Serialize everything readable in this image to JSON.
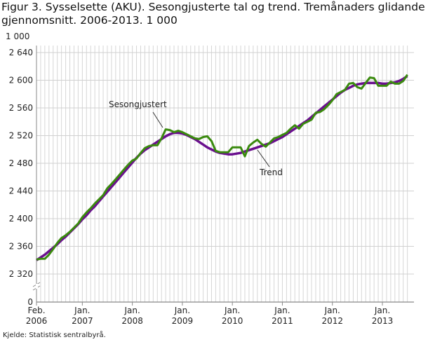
{
  "chart_data": {
    "type": "line",
    "title": "Figur 3. Sysselsette (AKU).  Sesongjusterte tal og trend. Tremånaders glidande gjennomsnitt. 2006-2013. 1 000",
    "ylabel": "1 000",
    "source": "Kjelde: Statistisk sentralbyrå.",
    "x_start": "2006-02",
    "x_end": "2013-07",
    "x_step": "month",
    "x_ticks": [
      {
        "month": 0,
        "label": [
          "Feb.",
          "2006"
        ]
      },
      {
        "month": 11,
        "label": [
          "Jan.",
          "2007"
        ]
      },
      {
        "month": 23,
        "label": [
          "Jan.",
          "2008"
        ]
      },
      {
        "month": 35,
        "label": [
          "Jan.",
          "2009"
        ]
      },
      {
        "month": 47,
        "label": [
          "Jan.",
          "2010"
        ]
      },
      {
        "month": 59,
        "label": [
          "Jan.",
          "2011"
        ]
      },
      {
        "month": 71,
        "label": [
          "Jan.",
          "2012"
        ]
      },
      {
        "month": 83,
        "label": [
          "Jan.",
          "2013"
        ]
      }
    ],
    "y_ticks": [
      {
        "v": 0,
        "label": "0"
      },
      {
        "v": 2320,
        "label": "2 320"
      },
      {
        "v": 2360,
        "label": "2 360"
      },
      {
        "v": 2400,
        "label": "2 400"
      },
      {
        "v": 2440,
        "label": "2 440"
      },
      {
        "v": 2480,
        "label": "2 480"
      },
      {
        "v": 2520,
        "label": "2 520"
      },
      {
        "v": 2560,
        "label": "2 560"
      },
      {
        "v": 2600,
        "label": "2 600"
      },
      {
        "v": 2640,
        "label": "2 640"
      }
    ],
    "ylim": [
      2320,
      2640
    ],
    "y_axis_break": true,
    "grid": true,
    "series": [
      {
        "name": "Sesongjustert",
        "color": "#3a8a0e",
        "values": [
          2341,
          2342,
          2342,
          2348,
          2356,
          2365,
          2372,
          2376,
          2381,
          2387,
          2393,
          2402,
          2409,
          2415,
          2422,
          2428,
          2434,
          2444,
          2450,
          2457,
          2464,
          2471,
          2478,
          2484,
          2487,
          2495,
          2502,
          2505,
          2506,
          2506,
          2516,
          2529,
          2528,
          2525,
          2527,
          2525,
          2522,
          2519,
          2516,
          2515,
          2518,
          2519,
          2512,
          2498,
          2496,
          2496,
          2496,
          2503,
          2503,
          2503,
          2490,
          2505,
          2510,
          2514,
          2508,
          2504,
          2510,
          2516,
          2518,
          2521,
          2524,
          2530,
          2535,
          2530,
          2537,
          2540,
          2543,
          2553,
          2554,
          2558,
          2564,
          2571,
          2580,
          2583,
          2586,
          2595,
          2596,
          2590,
          2588,
          2596,
          2604,
          2603,
          2592,
          2592,
          2592,
          2598,
          2595,
          2595,
          2599,
          2608
        ]
      },
      {
        "name": "Trend",
        "color": "#6a0f8e",
        "values": [
          2340,
          2344,
          2348,
          2353,
          2358,
          2363,
          2369,
          2374,
          2380,
          2386,
          2392,
          2399,
          2405,
          2412,
          2418,
          2425,
          2432,
          2439,
          2446,
          2453,
          2460,
          2467,
          2474,
          2481,
          2488,
          2494,
          2499,
          2503,
          2507,
          2511,
          2515,
          2519,
          2522,
          2524,
          2524,
          2523,
          2521,
          2518,
          2515,
          2511,
          2507,
          2503,
          2500,
          2497,
          2495,
          2494,
          2493,
          2493,
          2494,
          2495,
          2497,
          2499,
          2501,
          2503,
          2505,
          2507,
          2509,
          2512,
          2515,
          2518,
          2522,
          2526,
          2530,
          2534,
          2538,
          2542,
          2547,
          2552,
          2557,
          2562,
          2567,
          2572,
          2577,
          2582,
          2586,
          2589,
          2592,
          2594,
          2595,
          2596,
          2596,
          2596,
          2596,
          2595,
          2595,
          2596,
          2597,
          2599,
          2602,
          2606
        ]
      }
    ]
  }
}
